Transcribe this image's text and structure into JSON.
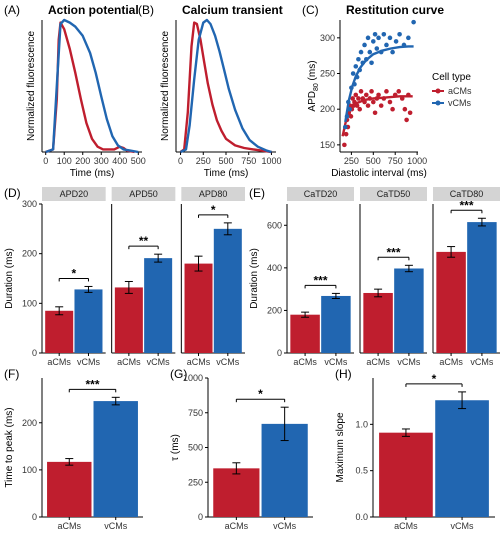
{
  "colors": {
    "aCMs": "#bf1e2e",
    "vCMs": "#2166b1"
  },
  "chart_data": [
    {
      "id": "A",
      "label": "(A)",
      "type": "line",
      "title": "Action potential",
      "xlabel": "Time (ms)",
      "ylabel": "Normalized fluorescence",
      "xlim": [
        -20,
        520
      ],
      "ylim": [
        0,
        1.0
      ],
      "xticks": [
        "0",
        "100",
        "200",
        "300",
        "400",
        "500"
      ],
      "series": [
        {
          "name": "aCMs",
          "x": [
            0,
            40,
            60,
            70,
            80,
            100,
            130,
            160,
            190,
            220,
            250,
            280,
            310,
            340,
            370,
            400,
            420,
            440,
            480
          ],
          "y": [
            0,
            0.02,
            0.4,
            0.85,
            0.98,
            0.93,
            0.78,
            0.6,
            0.4,
            0.22,
            0.1,
            0.04,
            0.02,
            0.02,
            0.02,
            0.04,
            0.03,
            0.01,
            0
          ]
        },
        {
          "name": "vCMs",
          "x": [
            0,
            40,
            60,
            80,
            100,
            130,
            160,
            200,
            240,
            270,
            300,
            330,
            360,
            390,
            420,
            460,
            500
          ],
          "y": [
            0,
            0.02,
            0.5,
            0.97,
            1.0,
            0.98,
            0.95,
            0.88,
            0.75,
            0.6,
            0.42,
            0.25,
            0.12,
            0.05,
            0.02,
            0.01,
            0
          ]
        }
      ]
    },
    {
      "id": "B",
      "label": "(B)",
      "type": "line",
      "title": "Calcium  transient",
      "xlabel": "Time (ms)",
      "ylabel": "Normalized fluorescence",
      "xlim": [
        -50,
        1050
      ],
      "ylim": [
        0,
        1.0
      ],
      "xticks": [
        "0",
        "250",
        "500",
        "750",
        "1000"
      ],
      "series": [
        {
          "name": "aCMs",
          "x": [
            0,
            40,
            80,
            120,
            150,
            180,
            220,
            260,
            300,
            350,
            400,
            450,
            500,
            600,
            700,
            800,
            900,
            1000
          ],
          "y": [
            0,
            0.02,
            0.3,
            0.8,
            0.98,
            0.97,
            0.85,
            0.68,
            0.52,
            0.36,
            0.24,
            0.16,
            0.1,
            0.05,
            0.03,
            0.02,
            0.01,
            0
          ]
        },
        {
          "name": "vCMs",
          "x": [
            0,
            60,
            100,
            150,
            200,
            250,
            290,
            330,
            380,
            430,
            480,
            530,
            600,
            680,
            760,
            850,
            950,
            1000
          ],
          "y": [
            0,
            0.02,
            0.2,
            0.55,
            0.85,
            0.98,
            1.0,
            0.97,
            0.88,
            0.76,
            0.62,
            0.48,
            0.32,
            0.18,
            0.09,
            0.04,
            0.01,
            0
          ]
        }
      ]
    },
    {
      "id": "C",
      "label": "(C)",
      "type": "scatter",
      "title": "Restitution curve",
      "xlabel": "Diastolic interval (ms)",
      "ylabel": "APD80 (ms)",
      "ylabel_main": "APD",
      "ylabel_sub": "80",
      "ylabel_unit": " (ms)",
      "xlim": [
        120,
        1010
      ],
      "ylim": [
        140,
        325
      ],
      "xticks": [
        250,
        500,
        750,
        1000
      ],
      "yticks": [
        150,
        200,
        250,
        300
      ],
      "legend": {
        "title": "Cell type",
        "position": "right",
        "items": [
          "aCMs",
          "vCMs"
        ]
      },
      "series": [
        {
          "name": "aCMs",
          "points": [
            [
              170,
              150
            ],
            [
              190,
              165
            ],
            [
              200,
              185
            ],
            [
              210,
              175
            ],
            [
              220,
              195
            ],
            [
              235,
              205
            ],
            [
              245,
              190
            ],
            [
              255,
              200
            ],
            [
              265,
              215
            ],
            [
              275,
              205
            ],
            [
              285,
              210
            ],
            [
              300,
              220
            ],
            [
              315,
              205
            ],
            [
              330,
              215
            ],
            [
              345,
              200
            ],
            [
              360,
              225
            ],
            [
              380,
              215
            ],
            [
              400,
              210
            ],
            [
              420,
              220
            ],
            [
              440,
              205
            ],
            [
              460,
              215
            ],
            [
              480,
              225
            ],
            [
              500,
              210
            ],
            [
              520,
              195
            ],
            [
              540,
              215
            ],
            [
              560,
              220
            ],
            [
              590,
              205
            ],
            [
              620,
              215
            ],
            [
              650,
              225
            ],
            [
              690,
              210
            ],
            [
              720,
              200
            ],
            [
              750,
              220
            ],
            [
              790,
              225
            ],
            [
              830,
              215
            ],
            [
              860,
              200
            ],
            [
              880,
              185
            ],
            [
              900,
              220
            ],
            [
              920,
              195
            ]
          ],
          "fit_x": [
            150,
            200,
            250,
            300,
            400,
            500,
            600,
            700,
            800,
            900,
            950
          ],
          "fit_y": [
            162,
            190,
            202,
            208,
            213,
            215,
            216,
            217,
            218,
            218,
            218
          ]
        },
        {
          "name": "vCMs",
          "points": [
            [
              180,
              175
            ],
            [
              200,
              190
            ],
            [
              215,
              210
            ],
            [
              230,
              200
            ],
            [
              250,
              230
            ],
            [
              270,
              250
            ],
            [
              285,
              235
            ],
            [
              300,
              260
            ],
            [
              315,
              245
            ],
            [
              330,
              270
            ],
            [
              345,
              255
            ],
            [
              360,
              280
            ],
            [
              380,
              265
            ],
            [
              400,
              290
            ],
            [
              420,
              270
            ],
            [
              440,
              300
            ],
            [
              460,
              280
            ],
            [
              480,
              265
            ],
            [
              500,
              295
            ],
            [
              520,
              305
            ],
            [
              540,
              285
            ],
            [
              560,
              300
            ],
            [
              590,
              280
            ],
            [
              620,
              305
            ],
            [
              650,
              290
            ],
            [
              690,
              300
            ],
            [
              720,
              280
            ],
            [
              760,
              295
            ],
            [
              800,
              305
            ],
            [
              850,
              290
            ],
            [
              900,
              300
            ],
            [
              960,
              322
            ]
          ],
          "fit_x": [
            180,
            220,
            260,
            300,
            350,
            400,
            450,
            500,
            600,
            700,
            800,
            900,
            960
          ],
          "fit_y": [
            182,
            212,
            232,
            246,
            258,
            266,
            272,
            277,
            282,
            285,
            287,
            288,
            288
          ]
        }
      ]
    },
    {
      "id": "D",
      "label": "(D)",
      "type": "bar",
      "ylabel": "Duration (ms)",
      "ylim": [
        0,
        300
      ],
      "yticks": [
        0,
        100,
        200,
        300
      ],
      "facets": [
        {
          "strip": "APD20",
          "values": [
            85,
            128
          ],
          "errors": [
            8,
            6
          ],
          "sig": "*"
        },
        {
          "strip": "APD50",
          "values": [
            132,
            191
          ],
          "errors": [
            12,
            8
          ],
          "sig": "**"
        },
        {
          "strip": "APD80",
          "values": [
            180,
            250
          ],
          "errors": [
            15,
            12
          ],
          "sig": "*"
        }
      ],
      "categories": [
        "aCMs",
        "vCMs"
      ]
    },
    {
      "id": "E",
      "label": "(E)",
      "type": "bar",
      "ylabel": "Duration (ms)",
      "ylim": [
        0,
        700
      ],
      "yticks": [
        0,
        200,
        400,
        600
      ],
      "facets": [
        {
          "strip": "CaTD20",
          "values": [
            180,
            268
          ],
          "errors": [
            12,
            12
          ],
          "sig": "***"
        },
        {
          "strip": "CaTD50",
          "values": [
            282,
            397
          ],
          "errors": [
            18,
            15
          ],
          "sig": "***"
        },
        {
          "strip": "CaTD80",
          "values": [
            475,
            615
          ],
          "errors": [
            25,
            18
          ],
          "sig": "***"
        }
      ],
      "categories": [
        "aCMs",
        "vCMs"
      ]
    },
    {
      "id": "F",
      "label": "(F)",
      "type": "bar",
      "ylabel": "Time to peak (ms)",
      "ylim": [
        0,
        295
      ],
      "yticks": [
        0,
        100,
        200
      ],
      "categories": [
        "aCMs",
        "vCMs"
      ],
      "values": [
        117,
        246
      ],
      "errors": [
        7,
        8
      ],
      "sig": "***"
    },
    {
      "id": "G",
      "label": "(G)",
      "type": "bar",
      "ylabel": "τ (ms)",
      "ylim": [
        0,
        1000
      ],
      "yticks": [
        0,
        250,
        500,
        750,
        1000
      ],
      "categories": [
        "aCMs",
        "vCMs"
      ],
      "values": [
        350,
        670
      ],
      "errors": [
        40,
        120
      ],
      "sig": "*"
    },
    {
      "id": "H",
      "label": "(H)",
      "type": "bar",
      "ylabel": "Maximum slope",
      "ylim": [
        0,
        1.5
      ],
      "yticks": [
        "0.0",
        "0.5",
        "1.0"
      ],
      "ytick_values": [
        0,
        0.5,
        1.0
      ],
      "categories": [
        "aCMs",
        "vCMs"
      ],
      "values": [
        0.91,
        1.26
      ],
      "errors": [
        0.04,
        0.09
      ],
      "sig": "*"
    }
  ]
}
